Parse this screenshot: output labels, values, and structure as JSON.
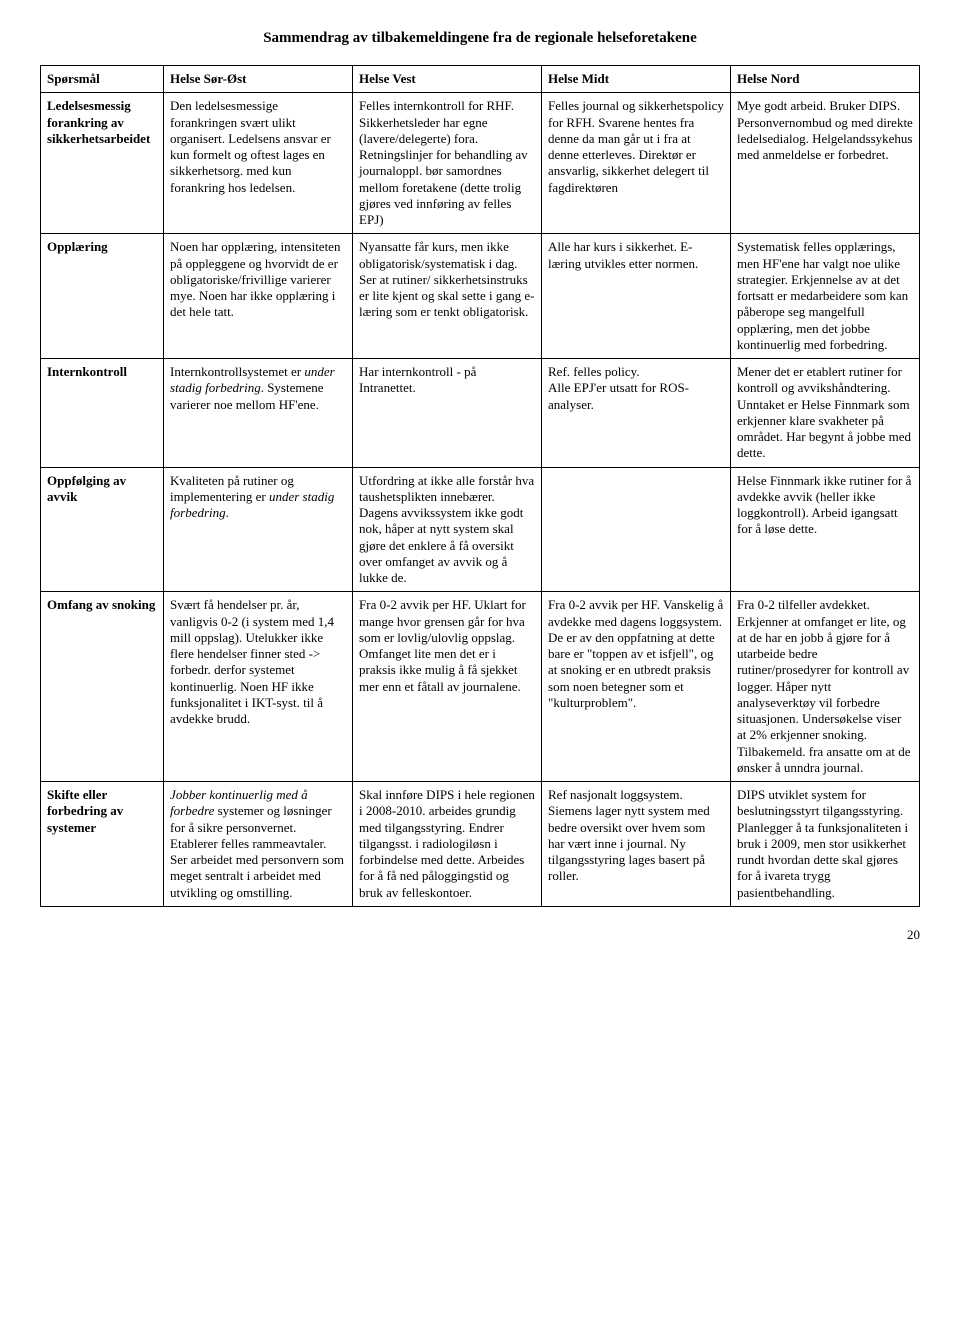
{
  "title": "Sammendrag av tilbakemeldingene fra de regionale helseforetakene",
  "headers": {
    "col0": "Spørsmål",
    "col1": "Helse Sør-Øst",
    "col2": "Helse Vest",
    "col3": "Helse Midt",
    "col4": "Helse Nord"
  },
  "rows": [
    {
      "label": "Ledelsesmessig forankring av sikkerhetsarbeidet",
      "c1": "Den ledelsesmessige forankringen svært ulikt organisert. Ledelsens ansvar er kun formelt og oftest lages en sikkerhetsorg. med kun forankring hos ledelsen.",
      "c2": "Felles internkontroll for RHF. Sikkerhetsleder har egne (lavere/delegerte) fora. Retningslinjer for behandling av journaloppl. bør samordnes mellom foretakene (dette trolig gjøres ved innføring av felles EPJ)",
      "c3": "Felles journal og sikkerhetspolicy for RFH. Svarene hentes fra denne da man går ut i fra at denne etterleves. Direktør er ansvarlig, sikkerhet delegert til fagdirektøren",
      "c4": "Mye godt arbeid. Bruker DIPS. Personvernombud og med direkte ledelsedialog. Helgelandssykehus med anmeldelse er forbedret."
    },
    {
      "label": "Opplæring",
      "c1": "Noen har opplæring, intensiteten på oppleggene og hvorvidt de er obligatoriske/frivillige varierer mye. Noen har ikke opplæring i det hele tatt.",
      "c2": "Nyansatte får kurs, men ikke obligatorisk/systematisk i dag. Ser at rutiner/ sikkerhetsinstruks er lite kjent og skal sette i gang e-læring som er tenkt obligatorisk.",
      "c3": "Alle har kurs i sikkerhet. E-læring utvikles etter normen.",
      "c4": "Systematisk felles opplærings, men HF'ene har valgt noe ulike strategier. Erkjennelse av at det fortsatt er medarbeidere som kan påberope seg mangelfull opplæring, men det jobbe kontinuerlig med forbedring."
    },
    {
      "label": "Internkontroll",
      "c1_pre": "Internkontrollsystemet er ",
      "c1_italic": "under stadig forbedring",
      "c1_post": ". Systemene varierer noe mellom HF'ene.",
      "c2": "Har internkontroll - på Intranettet.",
      "c3": "Ref. felles policy.\nAlle EPJ'er utsatt for ROS-analyser.",
      "c4": "Mener det er etablert rutiner for kontroll og avvikshåndtering. Unntaket er Helse Finnmark som erkjenner klare svakheter på området. Har begynt å jobbe med dette."
    },
    {
      "label": "Oppfølging av avvik",
      "c1_pre": "Kvaliteten på rutiner og implementering er ",
      "c1_italic": "under stadig forbedring",
      "c1_post": ".",
      "c2": "Utfordring at ikke alle forstår hva taushetsplikten innebærer. Dagens avvikssystem ikke godt nok, håper at nytt system skal gjøre det enklere å få oversikt over omfanget av avvik og å lukke de.",
      "c3": "",
      "c4": "Helse Finnmark ikke rutiner for å avdekke avvik (heller ikke loggkontroll). Arbeid igangsatt for å løse dette."
    },
    {
      "label": "Omfang av snoking",
      "c1": "Svært få hendelser pr. år, vanligvis 0-2 (i system med 1,4 mill oppslag). Utelukker ikke flere hendelser finner sted -> forbedr. derfor systemet kontinuerlig. Noen HF ikke funksjonalitet i IKT-syst. til å avdekke brudd.",
      "c2": "Fra 0-2 avvik per HF. Uklart for mange hvor grensen går for hva som er lovlig/ulovlig oppslag. Omfanget lite men det er i praksis ikke mulig å få sjekket mer enn et fåtall av journalene.",
      "c3": "Fra 0-2 avvik per HF. Vanskelig å avdekke med dagens loggsystem. De er av den oppfatning at dette bare er \"toppen av et isfjell\", og at snoking er en utbredt praksis som noen betegner som et \"kulturproblem\".",
      "c4": "Fra 0-2 tilfeller avdekket. Erkjenner at omfanget er lite, og at de har en jobb å gjøre for å utarbeide bedre rutiner/prosedyrer for kontroll av logger. Håper nytt analyseverktøy vil forbedre situasjonen. Undersøkelse viser at 2% erkjenner snoking. Tilbakemeld. fra ansatte om at de ønsker å unndra journal."
    },
    {
      "label": "Skifte eller forbedring av systemer",
      "c1_italic_lead": "Jobber kontinuerlig med å forbedre",
      "c1_post": " systemer og løsninger for å sikre personvernet. Etablerer felles rammeavtaler. Ser arbeidet med personvern som meget sentralt i arbeidet med utvikling og omstilling.",
      "c2": "Skal innføre DIPS i hele regionen i 2008-2010. arbeides grundig med tilgangsstyring. Endrer tilgangsst. i radiologiløsn i forbindelse med dette. Arbeides for å få ned påloggingstid og bruk av felleskontoer.",
      "c3": "Ref  nasjonalt loggsystem. Siemens lager nytt system med bedre oversikt over hvem som har vært inne i journal. Ny tilgangsstyring lages basert på roller.",
      "c4": "DIPS utviklet system for beslutningsstyrt tilgangsstyring. Planlegger å ta funksjonaliteten i bruk i 2009, men stor usikkerhet rundt hvordan dette skal gjøres for å ivareta trygg pasientbehandling."
    }
  ],
  "pagenum": "20"
}
